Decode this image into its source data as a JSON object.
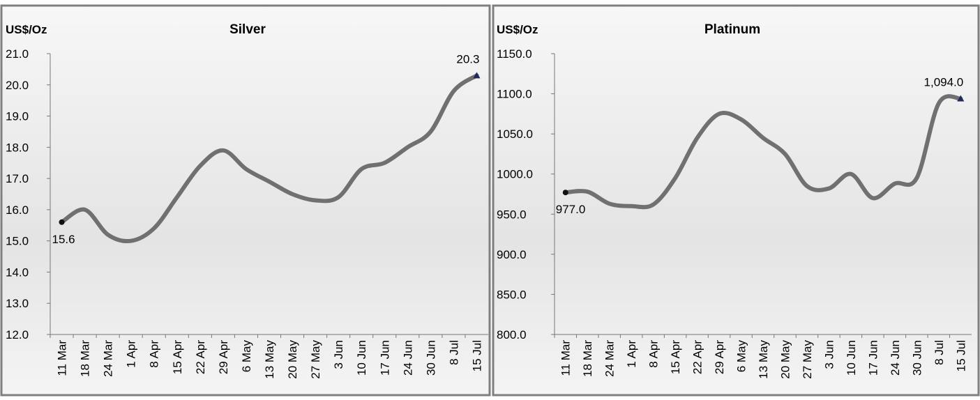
{
  "chart_data": [
    {
      "type": "line",
      "title": "Silver",
      "y_label": "US$/Oz",
      "categories": [
        "11 Mar",
        "18 Mar",
        "24 Mar",
        "1 Apr",
        "8 Apr",
        "15 Apr",
        "22 Apr",
        "29 Apr",
        "6 May",
        "13 May",
        "20 May",
        "27 May",
        "3 Jun",
        "10 Jun",
        "17 Jun",
        "24 Jun",
        "30 Jun",
        "8 Jul",
        "15 Jul"
      ],
      "values": [
        15.6,
        16.0,
        15.2,
        15.0,
        15.4,
        16.4,
        17.4,
        17.9,
        17.3,
        16.9,
        16.5,
        16.3,
        16.4,
        17.3,
        17.5,
        18.0,
        18.5,
        19.8,
        20.3
      ],
      "value_labels": [
        "15.6",
        null,
        null,
        null,
        null,
        null,
        null,
        null,
        null,
        null,
        null,
        null,
        null,
        null,
        null,
        null,
        null,
        null,
        "20.3"
      ],
      "color": "#707070",
      "ylim": [
        12,
        21
      ],
      "yticks": [
        {
          "value": 12,
          "label": "12.0"
        },
        {
          "value": 13,
          "label": "13.0"
        },
        {
          "value": 14,
          "label": "14.0"
        },
        {
          "value": 15,
          "label": "15.0"
        },
        {
          "value": 16,
          "label": "16.0"
        },
        {
          "value": 17,
          "label": "17.0"
        },
        {
          "value": 18,
          "label": "18.0"
        },
        {
          "value": 19,
          "label": "19.0"
        },
        {
          "value": 20,
          "label": "20.0"
        },
        {
          "value": 21,
          "label": "21.0"
        }
      ]
    },
    {
      "type": "line",
      "title": "Platinum",
      "y_label": "US$/Oz",
      "categories": [
        "11 Mar",
        "18 Mar",
        "24 Mar",
        "1 Apr",
        "8 Apr",
        "15 Apr",
        "22 Apr",
        "29 Apr",
        "6 May",
        "13 May",
        "20 May",
        "27 May",
        "3 Jun",
        "10 Jun",
        "17 Jun",
        "24 Jun",
        "30 Jun",
        "8 Jul",
        "15 Jul"
      ],
      "values": [
        977,
        978,
        963,
        960,
        962,
        995,
        1045,
        1075,
        1068,
        1045,
        1025,
        985,
        982,
        1000,
        970,
        988,
        995,
        1088,
        1094
      ],
      "value_labels": [
        "977.0",
        null,
        null,
        null,
        null,
        null,
        null,
        null,
        null,
        null,
        null,
        null,
        null,
        null,
        null,
        null,
        null,
        null,
        "1,094.0"
      ],
      "color": "#707070",
      "ylim": [
        800,
        1150
      ],
      "yticks": [
        {
          "value": 800,
          "label": "800.0"
        },
        {
          "value": 850,
          "label": "850.0"
        },
        {
          "value": 900,
          "label": "900.0"
        },
        {
          "value": 950,
          "label": "950.0"
        },
        {
          "value": 1000,
          "label": "1000.0"
        },
        {
          "value": 1050,
          "label": "1050.0"
        },
        {
          "value": 1100,
          "label": "1100.0"
        },
        {
          "value": 1150,
          "label": "1150.0"
        }
      ]
    }
  ]
}
